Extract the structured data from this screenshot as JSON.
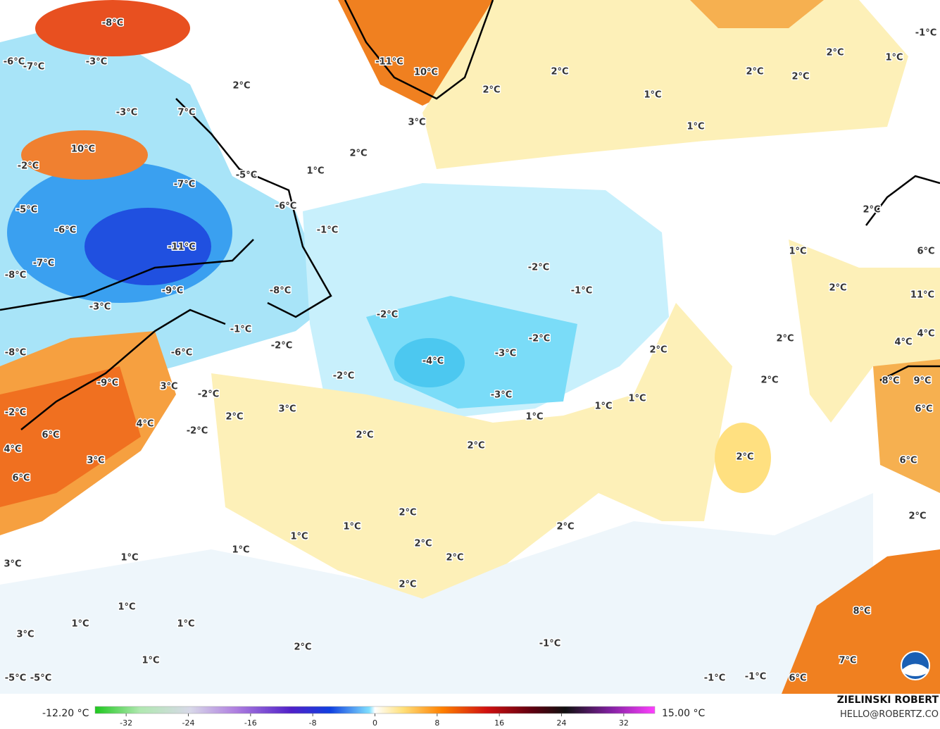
{
  "map": {
    "labels": [
      "-8°C",
      "-6°C",
      "-7°C",
      "-3°C",
      "-3°C",
      "7°C",
      "10°C",
      "-2°C",
      "-5°C",
      "-7°C",
      "-6°C",
      "-5°C",
      "-6°C",
      "-11°C",
      "-7°C",
      "-8°C",
      "-9°C",
      "-8°C",
      "-3°C",
      "-1°C",
      "-2°C",
      "-1°C",
      "-2°C",
      "-2°C",
      "-3°C",
      "-4°C",
      "-2°C",
      "-3°C",
      "-1°C",
      "-8°C",
      "-2°C",
      "-6°C",
      "-9°C",
      "3°C",
      "-2°C",
      "-2°C",
      "-2°C",
      "4°C",
      "3°C",
      "2°C",
      "6°C",
      "4°C",
      "3°C",
      "6°C",
      "2°C",
      "2°C",
      "1°C",
      "1°C",
      "1°C",
      "2°C",
      "2°C",
      "2°C",
      "2°C",
      "3°C",
      "1°C",
      "1°C",
      "1°C",
      "1°C",
      "2°C",
      "2°C",
      "2°C",
      "2°C",
      "2°C",
      "1°C",
      "1°C",
      "1°C",
      "3°C",
      "2°C",
      "1°C",
      "-1°C",
      "-5°C",
      "-5°C",
      "-1°C",
      "-1°C",
      "6°C",
      "7°C",
      "8°C",
      "2°C",
      "6°C",
      "6°C",
      "8°C",
      "9°C",
      "4°C",
      "4°C",
      "11°C",
      "2°C",
      "1°C",
      "6°C",
      "2°C",
      "1°C",
      "2°C",
      "2°C",
      "2°C",
      "-1°C",
      "2°C",
      "2°C",
      "1°C",
      "1°C",
      "2°C",
      "-11°C",
      "10°C",
      "3°C",
      "2°C",
      "1°C"
    ],
    "colorbar": {
      "min_label": "-12.20 °C",
      "max_label": "15.00 °C",
      "lim": [
        -36,
        36
      ],
      "ticks": [
        -32,
        -24,
        -16,
        -8,
        0,
        8,
        16,
        24,
        32
      ]
    },
    "credit": {
      "name": "ZIELINSKI ROBERT",
      "email": "HELLO@ROBERTZ.CO"
    }
  }
}
